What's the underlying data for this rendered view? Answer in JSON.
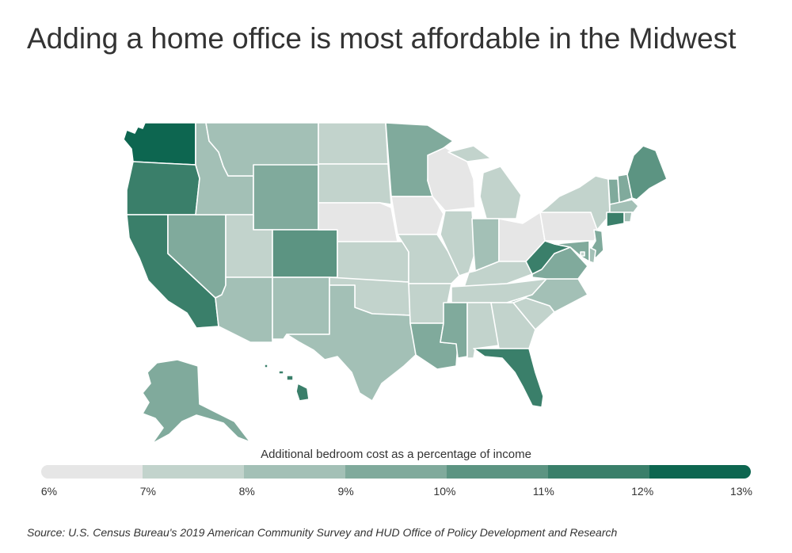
{
  "title": "Adding a home office is most affordable in the Midwest",
  "legend": {
    "title": "Additional bedroom cost as a percentage of income",
    "ticks": [
      "6%",
      "7%",
      "8%",
      "9%",
      "10%",
      "11%",
      "12%",
      "13%"
    ],
    "colors": [
      "#e6e6e6",
      "#c2d3cc",
      "#a3c0b6",
      "#80aa9c",
      "#5c9482",
      "#3a7f6a",
      "#0d6650"
    ]
  },
  "source": "Source:  U.S. Census Bureau's 2019 American Community Survey and HUD Office of Policy Development and Research",
  "states": {
    "WA": 6,
    "OR": 5,
    "CA": 5,
    "NV": 3,
    "ID": 2,
    "MT": 2,
    "WY": 3,
    "UT": 1,
    "AZ": 2,
    "CO": 4,
    "NM": 2,
    "ND": 1,
    "SD": 1,
    "NE": 0,
    "KS": 1,
    "OK": 1,
    "TX": 2,
    "MN": 3,
    "IA": 0,
    "MO": 1,
    "AR": 1,
    "LA": 3,
    "WI": 0,
    "IL": 1,
    "MI": 1,
    "IN": 2,
    "OH": 0,
    "KY": 1,
    "TN": 1,
    "MS": 3,
    "AL": 1,
    "GA": 1,
    "FL": 5,
    "SC": 1,
    "NC": 2,
    "VA": 3,
    "WV": 5,
    "PA": 0,
    "NY": 1,
    "VT": 3,
    "NH": 3,
    "ME": 4,
    "MA": 2,
    "CT": 5,
    "RI": 2,
    "NJ": 3,
    "DE": 2,
    "MD": 3,
    "DC": 1,
    "AK": 3,
    "HI": 5
  }
}
